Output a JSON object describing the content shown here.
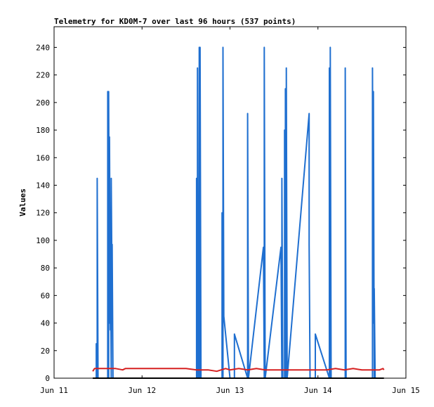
{
  "chart_data": {
    "type": "line",
    "title": "Telemetry for KD0M-7 over last 96 hours (537 points)",
    "ylabel": "Values",
    "xlabel": "",
    "ylim": [
      0,
      255
    ],
    "xlim": [
      0,
      4
    ],
    "y_ticks": [
      0,
      20,
      40,
      60,
      80,
      100,
      120,
      140,
      160,
      180,
      200,
      220,
      240
    ],
    "x_ticks": [
      {
        "x": 0,
        "label": "Jun 11"
      },
      {
        "x": 1,
        "label": "Jun 12"
      },
      {
        "x": 2,
        "label": "Jun 13"
      },
      {
        "x": 3,
        "label": "Jun 14"
      },
      {
        "x": 4,
        "label": "Jun 15"
      }
    ],
    "grid": false,
    "legend": "none",
    "series": [
      {
        "color": "#1f6fd0",
        "points": [
          [
            0.48,
            0
          ],
          [
            0.48,
            25
          ],
          [
            0.49,
            0
          ],
          [
            0.49,
            145
          ],
          [
            0.5,
            0
          ],
          [
            0.61,
            0
          ],
          [
            0.61,
            208
          ],
          [
            0.62,
            0
          ],
          [
            0.62,
            208
          ],
          [
            0.63,
            40
          ],
          [
            0.63,
            175
          ],
          [
            0.64,
            35
          ],
          [
            0.64,
            105
          ],
          [
            0.65,
            0
          ],
          [
            0.65,
            145
          ],
          [
            0.66,
            50
          ],
          [
            0.66,
            97
          ],
          [
            0.67,
            0
          ],
          [
            1.62,
            0
          ],
          [
            1.62,
            145
          ],
          [
            1.63,
            0
          ],
          [
            1.63,
            225
          ],
          [
            1.64,
            0
          ],
          [
            1.65,
            0
          ],
          [
            1.65,
            240
          ],
          [
            1.66,
            0
          ],
          [
            1.66,
            240
          ],
          [
            1.67,
            0
          ],
          [
            1.91,
            0
          ],
          [
            1.91,
            120
          ],
          [
            1.92,
            0
          ],
          [
            1.92,
            240
          ],
          [
            1.93,
            45
          ],
          [
            2.0,
            0
          ],
          [
            2.05,
            0
          ],
          [
            2.05,
            32
          ],
          [
            2.2,
            0
          ],
          [
            2.2,
            192
          ],
          [
            2.21,
            0
          ],
          [
            2.38,
            95
          ],
          [
            2.39,
            0
          ],
          [
            2.39,
            240
          ],
          [
            2.4,
            0
          ],
          [
            2.58,
            95
          ],
          [
            2.59,
            0
          ],
          [
            2.59,
            145
          ],
          [
            2.6,
            0
          ],
          [
            2.62,
            0
          ],
          [
            2.62,
            180
          ],
          [
            2.63,
            0
          ],
          [
            2.63,
            210
          ],
          [
            2.64,
            0
          ],
          [
            2.64,
            225
          ],
          [
            2.65,
            0
          ],
          [
            2.9,
            192
          ],
          [
            2.9,
            97
          ],
          [
            2.91,
            0
          ],
          [
            2.91,
            0
          ],
          [
            2.97,
            0
          ],
          [
            2.97,
            32
          ],
          [
            3.13,
            0
          ],
          [
            3.13,
            225
          ],
          [
            3.14,
            0
          ],
          [
            3.14,
            240
          ],
          [
            3.15,
            0
          ],
          [
            3.31,
            0
          ],
          [
            3.31,
            225
          ],
          [
            3.32,
            0
          ],
          [
            3.62,
            0
          ],
          [
            3.62,
            225
          ],
          [
            3.63,
            40
          ],
          [
            3.63,
            208
          ],
          [
            3.64,
            0
          ],
          [
            3.64,
            65
          ],
          [
            3.65,
            0
          ]
        ]
      },
      {
        "color": "#d62020",
        "points": [
          [
            0.44,
            5
          ],
          [
            0.46,
            7
          ],
          [
            0.55,
            7
          ],
          [
            0.7,
            7
          ],
          [
            0.78,
            6
          ],
          [
            0.81,
            7
          ],
          [
            0.9,
            7
          ],
          [
            1.2,
            7
          ],
          [
            1.5,
            7
          ],
          [
            1.62,
            6
          ],
          [
            1.75,
            6
          ],
          [
            1.85,
            5
          ],
          [
            1.9,
            6
          ],
          [
            1.95,
            7
          ],
          [
            2.0,
            6
          ],
          [
            2.1,
            7
          ],
          [
            2.2,
            6
          ],
          [
            2.3,
            7
          ],
          [
            2.4,
            6
          ],
          [
            2.5,
            6
          ],
          [
            2.6,
            6
          ],
          [
            2.8,
            6
          ],
          [
            3.0,
            6
          ],
          [
            3.1,
            6
          ],
          [
            3.2,
            7
          ],
          [
            3.3,
            6
          ],
          [
            3.4,
            7
          ],
          [
            3.5,
            6
          ],
          [
            3.6,
            6
          ],
          [
            3.7,
            6
          ],
          [
            3.74,
            7
          ],
          [
            3.75,
            6
          ]
        ]
      },
      {
        "color": "#000000",
        "points": [
          [
            0.44,
            0
          ],
          [
            3.75,
            0
          ]
        ]
      }
    ]
  }
}
